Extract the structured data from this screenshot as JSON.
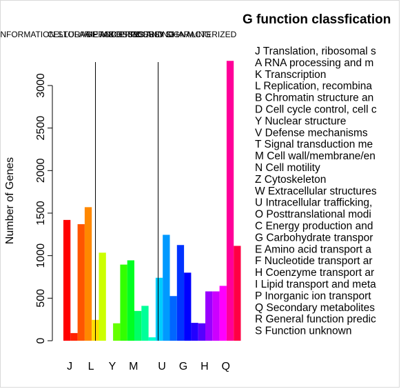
{
  "chart_data": {
    "type": "bar",
    "title": "G function classfication",
    "ylabel": "Number of Genes",
    "xlabel": "",
    "ylim": [
      0,
      3300
    ],
    "yticks": [
      0,
      500,
      1000,
      1500,
      2000,
      2500,
      3000
    ],
    "x_tick_labels": [
      "J",
      "L",
      "Y",
      "M",
      "U",
      "G",
      "H",
      "Q"
    ],
    "group_labels": [
      "INFORMATION STORAGE AND PROCESSING",
      "CELLULAR PROCESSES AND SIGNALING",
      "METABOLISM",
      "POORLY CHARACTERIZED"
    ],
    "categories": [
      "J",
      "A",
      "K",
      "L",
      "B",
      "D",
      "Y",
      "V",
      "T",
      "M",
      "N",
      "Z",
      "W",
      "U",
      "O",
      "C",
      "G",
      "E",
      "F",
      "H",
      "I",
      "P",
      "Q",
      "R",
      "S"
    ],
    "values": [
      1420,
      90,
      1370,
      1570,
      245,
      1035,
      0,
      205,
      895,
      945,
      350,
      410,
      40,
      740,
      1245,
      525,
      1125,
      800,
      210,
      205,
      580,
      580,
      645,
      3290,
      1115
    ],
    "colors": [
      "#ff0000",
      "#ff2200",
      "#ff5500",
      "#ff8800",
      "#ffdd00",
      "#ccff00",
      "#99ff00",
      "#66ff00",
      "#33ff00",
      "#00ff22",
      "#00ff66",
      "#00ff99",
      "#00ffcc",
      "#00ccff",
      "#0099ff",
      "#0066ff",
      "#0033ff",
      "#0000ff",
      "#2200ff",
      "#5500ff",
      "#9900ff",
      "#cc00ff",
      "#ff00ff",
      "#ff0099",
      "#ff0044"
    ],
    "legend": [
      "J Translation, ribosomal s",
      "A RNA processing and m",
      "K Transcription",
      "L Replication, recombina",
      "B Chromatin structure an",
      "D Cell cycle control, cell c",
      "Y Nuclear structure",
      "V Defense mechanisms",
      "T Signal transduction me",
      "M Cell wall/membrane/en",
      "N Cell motility",
      "Z Cytoskeleton",
      "W Extracellular structures",
      "U Intracellular trafficking,",
      "O Posttranslational modi",
      "C Energy production and",
      "G Carbohydrate transpor",
      "E Amino acid transport a",
      "F Nucleotide transport ar",
      "H Coenzyme transport ar",
      "I Lipid transport and meta",
      "P Inorganic ion transport",
      "Q Secondary metabolites",
      "R General function predic",
      "S Function unknown"
    ],
    "legend_position": "right",
    "grid": false
  }
}
